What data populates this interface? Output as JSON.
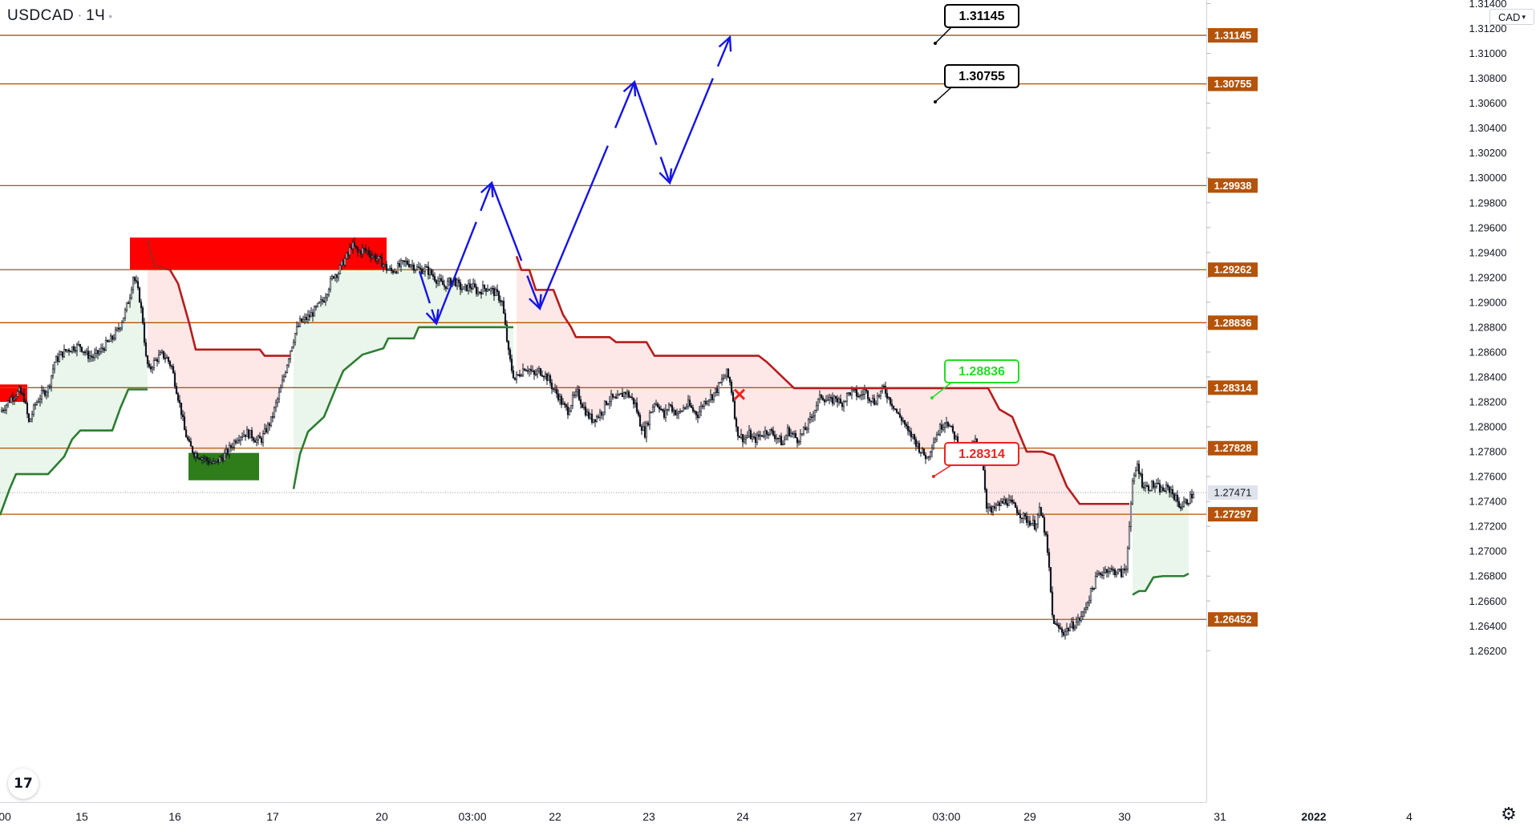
{
  "header": {
    "symbol": "USDCAD",
    "timeframe": "1Ч",
    "currency_button": "CAD"
  },
  "colors": {
    "level_line": "#b45309",
    "level_label_bg": "#b45309",
    "up_line": "#2e7d32",
    "down_line": "#b71c1c",
    "up_fill": "#e8f5e9",
    "down_fill": "#fde4e4",
    "supply_zone": "#ff0000",
    "demand_zone": "#2e7d1a",
    "projection": "#1414e6",
    "candle": "#131722",
    "target_callout_text": "#000000",
    "green_callout": "#22dd22",
    "red_callout": "#ee2222"
  },
  "icons": {
    "logo": "tradingview-logo-icon",
    "settings": "gear-icon",
    "dropdown": "chevron-down-icon"
  },
  "chart_data": {
    "type": "candlestick",
    "symbol": "USDCAD",
    "ylim": [
      1.2617,
      1.314
    ],
    "y_ticks": [
      "1.31400",
      "1.31200",
      "1.31000",
      "1.30800",
      "1.30600",
      "1.30400",
      "1.30200",
      "1.30000",
      "1.29800",
      "1.29600",
      "1.29400",
      "1.29200",
      "1.29000",
      "1.28800",
      "1.28600",
      "1.28400",
      "1.28200",
      "1.28000",
      "1.27800",
      "1.27600",
      "1.27400",
      "1.27200",
      "1.27000",
      "1.26800",
      "1.26600",
      "1.26400",
      "1.26200"
    ],
    "x_ticks": [
      "00",
      "15",
      "16",
      "17",
      "20",
      "03:00",
      "22",
      "23",
      "24",
      "27",
      "03:00",
      "29",
      "30",
      "31",
      "2022",
      "4"
    ],
    "current_price": "1.27471",
    "levels": [
      "1.31145",
      "1.30755",
      "1.29938",
      "1.29262",
      "1.28836",
      "1.28314",
      "1.27828",
      "1.27297",
      "1.26452"
    ],
    "callouts": [
      {
        "text": "1.31145",
        "style": "target",
        "price": 1.31145
      },
      {
        "text": "1.30755",
        "style": "target",
        "price": 1.30755
      },
      {
        "text": "1.28836",
        "style": "buy",
        "price": 1.28836
      },
      {
        "text": "1.28314",
        "style": "sell",
        "price": 1.28314
      }
    ],
    "zones": [
      {
        "kind": "supply",
        "from_bar": 162,
        "to_bar": 482,
        "top": 1.2952,
        "bottom": 1.2926
      },
      {
        "kind": "supply",
        "from_bar": 0,
        "to_bar": 34,
        "top": 1.2834,
        "bottom": 1.282
      },
      {
        "kind": "demand",
        "from_bar": 235,
        "to_bar": 323,
        "top": 1.2779,
        "bottom": 1.2757
      }
    ],
    "projection_path": [
      {
        "bar": 523,
        "price": 1.2925
      },
      {
        "bar": 544,
        "price": 1.2883
      },
      {
        "bar": 613,
        "price": 1.2996
      },
      {
        "bar": 673,
        "price": 1.2895
      },
      {
        "bar": 791,
        "price": 1.3077
      },
      {
        "bar": 835,
        "price": 1.2996
      },
      {
        "bar": 910,
        "price": 1.3113
      }
    ],
    "close_series": [
      [
        0,
        1.2812
      ],
      [
        8,
        1.2818
      ],
      [
        16,
        1.2825
      ],
      [
        24,
        1.2828
      ],
      [
        30,
        1.2823
      ],
      [
        36,
        1.2803
      ],
      [
        44,
        1.2818
      ],
      [
        52,
        1.2826
      ],
      [
        60,
        1.2831
      ],
      [
        68,
        1.2852
      ],
      [
        76,
        1.2858
      ],
      [
        84,
        1.2862
      ],
      [
        92,
        1.2864
      ],
      [
        100,
        1.2865
      ],
      [
        108,
        1.2858
      ],
      [
        116,
        1.2856
      ],
      [
        124,
        1.286
      ],
      [
        132,
        1.2866
      ],
      [
        140,
        1.2871
      ],
      [
        148,
        1.2879
      ],
      [
        156,
        1.2892
      ],
      [
        162,
        1.2906
      ],
      [
        166,
        1.2921
      ],
      [
        170,
        1.2914
      ],
      [
        174,
        1.2903
      ],
      [
        178,
        1.2885
      ],
      [
        182,
        1.2855
      ],
      [
        186,
        1.2845
      ],
      [
        190,
        1.285
      ],
      [
        196,
        1.2855
      ],
      [
        202,
        1.2858
      ],
      [
        208,
        1.2855
      ],
      [
        214,
        1.2848
      ],
      [
        220,
        1.283
      ],
      [
        226,
        1.2812
      ],
      [
        230,
        1.2797
      ],
      [
        236,
        1.2785
      ],
      [
        242,
        1.2779
      ],
      [
        248,
        1.2777
      ],
      [
        254,
        1.2775
      ],
      [
        260,
        1.2772
      ],
      [
        266,
        1.277
      ],
      [
        272,
        1.2773
      ],
      [
        278,
        1.2776
      ],
      [
        284,
        1.278
      ],
      [
        290,
        1.2786
      ],
      [
        296,
        1.2792
      ],
      [
        302,
        1.2794
      ],
      [
        308,
        1.2795
      ],
      [
        314,
        1.2793
      ],
      [
        320,
        1.2789
      ],
      [
        326,
        1.279
      ],
      [
        332,
        1.2798
      ],
      [
        338,
        1.2805
      ],
      [
        344,
        1.2818
      ],
      [
        350,
        1.283
      ],
      [
        356,
        1.2846
      ],
      [
        362,
        1.2862
      ],
      [
        368,
        1.2875
      ],
      [
        374,
        1.2884
      ],
      [
        380,
        1.2886
      ],
      [
        386,
        1.2889
      ],
      [
        392,
        1.2893
      ],
      [
        398,
        1.2898
      ],
      [
        404,
        1.2903
      ],
      [
        410,
        1.2913
      ],
      [
        416,
        1.2922
      ],
      [
        422,
        1.2924
      ],
      [
        428,
        1.2933
      ],
      [
        434,
        1.2938
      ],
      [
        438,
        1.2946
      ],
      [
        442,
        1.2944
      ],
      [
        446,
        1.294
      ],
      [
        452,
        1.2942
      ],
      [
        458,
        1.2941
      ],
      [
        464,
        1.2938
      ],
      [
        470,
        1.2935
      ],
      [
        476,
        1.2932
      ],
      [
        482,
        1.2927
      ],
      [
        488,
        1.2925
      ],
      [
        494,
        1.2927
      ],
      [
        500,
        1.293
      ],
      [
        506,
        1.2932
      ],
      [
        512,
        1.2931
      ],
      [
        518,
        1.2928
      ],
      [
        524,
        1.2926
      ],
      [
        530,
        1.2927
      ],
      [
        536,
        1.2924
      ],
      [
        542,
        1.292
      ],
      [
        548,
        1.2916
      ],
      [
        554,
        1.2913
      ],
      [
        560,
        1.2916
      ],
      [
        566,
        1.2918
      ],
      [
        572,
        1.2913
      ],
      [
        578,
        1.291
      ],
      [
        584,
        1.2913
      ],
      [
        590,
        1.2912
      ],
      [
        596,
        1.2908
      ],
      [
        602,
        1.2911
      ],
      [
        608,
        1.2912
      ],
      [
        614,
        1.2909
      ],
      [
        620,
        1.2906
      ],
      [
        626,
        1.29
      ],
      [
        630,
        1.288
      ],
      [
        634,
        1.2859
      ],
      [
        638,
        1.2846
      ],
      [
        642,
        1.2838
      ],
      [
        648,
        1.2843
      ],
      [
        654,
        1.2848
      ],
      [
        660,
        1.2846
      ],
      [
        666,
        1.2841
      ],
      [
        672,
        1.2845
      ],
      [
        678,
        1.2843
      ],
      [
        684,
        1.2838
      ],
      [
        690,
        1.283
      ],
      [
        696,
        1.2825
      ],
      [
        702,
        1.2817
      ],
      [
        708,
        1.2813
      ],
      [
        714,
        1.2822
      ],
      [
        720,
        1.2827
      ],
      [
        726,
        1.2818
      ],
      [
        732,
        1.281
      ],
      [
        738,
        1.2806
      ],
      [
        744,
        1.2808
      ],
      [
        750,
        1.2812
      ],
      [
        756,
        1.282
      ],
      [
        762,
        1.2823
      ],
      [
        768,
        1.2821
      ],
      [
        774,
        1.2825
      ],
      [
        780,
        1.2828
      ],
      [
        786,
        1.2824
      ],
      [
        792,
        1.2818
      ],
      [
        798,
        1.2803
      ],
      [
        804,
        1.2795
      ],
      [
        810,
        1.281
      ],
      [
        816,
        1.282
      ],
      [
        822,
        1.2817
      ],
      [
        828,
        1.2808
      ],
      [
        834,
        1.2818
      ],
      [
        840,
        1.2813
      ],
      [
        846,
        1.281
      ],
      [
        852,
        1.2815
      ],
      [
        858,
        1.2818
      ],
      [
        864,
        1.2813
      ],
      [
        870,
        1.281
      ],
      [
        876,
        1.2818
      ],
      [
        882,
        1.2823
      ],
      [
        888,
        1.2825
      ],
      [
        894,
        1.283
      ],
      [
        900,
        1.2837
      ],
      [
        906,
        1.2843
      ],
      [
        910,
        1.2836
      ],
      [
        914,
        1.2822
      ],
      [
        918,
        1.2798
      ],
      [
        922,
        1.2793
      ],
      [
        928,
        1.279
      ],
      [
        934,
        1.2794
      ],
      [
        940,
        1.2789
      ],
      [
        946,
        1.2792
      ],
      [
        952,
        1.2795
      ],
      [
        958,
        1.2797
      ],
      [
        964,
        1.2794
      ],
      [
        970,
        1.2791
      ],
      [
        976,
        1.2786
      ],
      [
        982,
        1.2797
      ],
      [
        988,
        1.2794
      ],
      [
        994,
        1.279
      ],
      [
        1000,
        1.2794
      ],
      [
        1006,
        1.28
      ],
      [
        1012,
        1.2808
      ],
      [
        1018,
        1.2818
      ],
      [
        1024,
        1.2825
      ],
      [
        1030,
        1.2822
      ],
      [
        1036,
        1.282
      ],
      [
        1042,
        1.2824
      ],
      [
        1048,
        1.2818
      ],
      [
        1054,
        1.2823
      ],
      [
        1060,
        1.2828
      ],
      [
        1066,
        1.2827
      ],
      [
        1072,
        1.2824
      ],
      [
        1078,
        1.2829
      ],
      [
        1084,
        1.2824
      ],
      [
        1090,
        1.282
      ],
      [
        1096,
        1.2826
      ],
      [
        1102,
        1.2831
      ],
      [
        1108,
        1.2823
      ],
      [
        1114,
        1.2817
      ],
      [
        1120,
        1.2809
      ],
      [
        1126,
        1.2805
      ],
      [
        1132,
        1.2795
      ],
      [
        1138,
        1.2792
      ],
      [
        1144,
        1.2785
      ],
      [
        1150,
        1.2779
      ],
      [
        1156,
        1.2775
      ],
      [
        1162,
        1.2786
      ],
      [
        1168,
        1.2794
      ],
      [
        1174,
        1.2801
      ],
      [
        1180,
        1.2806
      ],
      [
        1186,
        1.2797
      ],
      [
        1192,
        1.279
      ],
      [
        1198,
        1.2784
      ],
      [
        1204,
        1.2777
      ],
      [
        1210,
        1.2783
      ],
      [
        1216,
        1.2788
      ],
      [
        1222,
        1.2784
      ],
      [
        1226,
        1.2766
      ],
      [
        1230,
        1.2737
      ],
      [
        1236,
        1.2731
      ],
      [
        1242,
        1.2736
      ],
      [
        1248,
        1.2738
      ],
      [
        1254,
        1.2741
      ],
      [
        1260,
        1.2738
      ],
      [
        1266,
        1.2735
      ],
      [
        1272,
        1.273
      ],
      [
        1278,
        1.2726
      ],
      [
        1284,
        1.2724
      ],
      [
        1290,
        1.2721
      ],
      [
        1296,
        1.2732
      ],
      [
        1300,
        1.2725
      ],
      [
        1304,
        1.271
      ],
      [
        1308,
        1.2685
      ],
      [
        1312,
        1.2648
      ],
      [
        1316,
        1.264
      ],
      [
        1320,
        1.2638
      ],
      [
        1326,
        1.2635
      ],
      [
        1332,
        1.2638
      ],
      [
        1338,
        1.2641
      ],
      [
        1344,
        1.2644
      ],
      [
        1350,
        1.2649
      ],
      [
        1356,
        1.266
      ],
      [
        1362,
        1.267
      ],
      [
        1368,
        1.268
      ],
      [
        1374,
        1.2683
      ],
      [
        1380,
        1.2686
      ],
      [
        1386,
        1.2684
      ],
      [
        1392,
        1.2684
      ],
      [
        1398,
        1.2682
      ],
      [
        1404,
        1.2686
      ],
      [
        1408,
        1.2723
      ],
      [
        1412,
        1.2753
      ],
      [
        1418,
        1.277
      ],
      [
        1424,
        1.2755
      ],
      [
        1430,
        1.2751
      ],
      [
        1436,
        1.2753
      ],
      [
        1442,
        1.2752
      ],
      [
        1448,
        1.2749
      ],
      [
        1454,
        1.275
      ],
      [
        1460,
        1.2749
      ],
      [
        1466,
        1.2742
      ],
      [
        1472,
        1.2736
      ],
      [
        1478,
        1.2739
      ],
      [
        1484,
        1.2743
      ],
      [
        1488,
        1.2747
      ]
    ],
    "trailing_stop": [
      {
        "trend": "up",
        "points": [
          [
            0,
            1.2729
          ],
          [
            12,
            1.275
          ],
          [
            20,
            1.2762
          ],
          [
            60,
            1.2762
          ],
          [
            80,
            1.2776
          ],
          [
            90,
            1.279
          ],
          [
            100,
            1.2797
          ],
          [
            140,
            1.2797
          ],
          [
            150,
            1.2815
          ],
          [
            160,
            1.283
          ],
          [
            184,
            1.283
          ]
        ]
      },
      {
        "trend": "down",
        "points": [
          [
            184,
            1.295
          ],
          [
            192,
            1.293
          ],
          [
            212,
            1.2926
          ],
          [
            222,
            1.2915
          ],
          [
            236,
            1.2883
          ],
          [
            244,
            1.2862
          ],
          [
            324,
            1.2862
          ],
          [
            330,
            1.2857
          ],
          [
            362,
            1.2857
          ]
        ]
      },
      {
        "trend": "up",
        "points": [
          [
            366,
            1.275
          ],
          [
            374,
            1.2778
          ],
          [
            384,
            1.2796
          ],
          [
            404,
            1.2808
          ],
          [
            418,
            1.283
          ],
          [
            428,
            1.2845
          ],
          [
            452,
            1.2858
          ],
          [
            478,
            1.2863
          ],
          [
            484,
            1.2871
          ],
          [
            516,
            1.2871
          ],
          [
            522,
            1.288
          ],
          [
            640,
            1.288
          ]
        ]
      },
      {
        "trend": "down",
        "points": [
          [
            644,
            1.2937
          ],
          [
            650,
            1.2926
          ],
          [
            660,
            1.2926
          ],
          [
            668,
            1.291
          ],
          [
            690,
            1.291
          ],
          [
            702,
            1.289
          ],
          [
            712,
            1.288
          ],
          [
            718,
            1.2872
          ],
          [
            760,
            1.2872
          ],
          [
            768,
            1.2868
          ],
          [
            806,
            1.2868
          ],
          [
            816,
            1.2857
          ],
          [
            946,
            1.2857
          ],
          [
            956,
            1.2852
          ],
          [
            990,
            1.2831
          ],
          [
            1232,
            1.2831
          ],
          [
            1246,
            1.2814
          ],
          [
            1262,
            1.2808
          ],
          [
            1280,
            1.278
          ],
          [
            1300,
            1.278
          ],
          [
            1314,
            1.2777
          ],
          [
            1330,
            1.2752
          ],
          [
            1346,
            1.2738
          ],
          [
            1408,
            1.2738
          ]
        ]
      },
      {
        "trend": "up",
        "points": [
          [
            1412,
            1.2665
          ],
          [
            1420,
            1.2668
          ],
          [
            1428,
            1.2668
          ],
          [
            1438,
            1.2679
          ],
          [
            1450,
            1.268
          ],
          [
            1476,
            1.268
          ],
          [
            1482,
            1.2682
          ]
        ]
      }
    ],
    "sell_marker": {
      "bar": 922,
      "price": 1.2826
    }
  }
}
